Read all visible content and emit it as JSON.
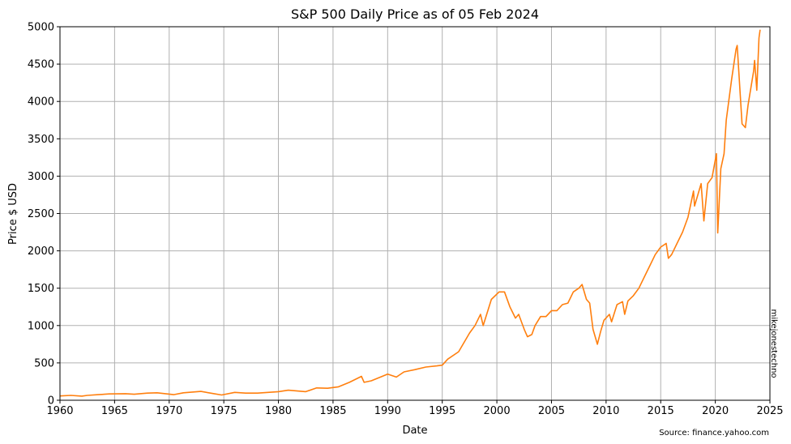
{
  "chart_data": {
    "type": "line",
    "title": "S&P 500 Daily Price as of 05 Feb 2024",
    "xlabel": "Date",
    "ylabel": "Price $ USD",
    "xlim": [
      1960,
      2025
    ],
    "ylim": [
      0,
      5000
    ],
    "x_ticks": [
      "1960",
      "1965",
      "1970",
      "1975",
      "1980",
      "1985",
      "1990",
      "1995",
      "2000",
      "2005",
      "2010",
      "2015",
      "2020",
      "2025"
    ],
    "y_ticks": [
      "0",
      "500",
      "1000",
      "1500",
      "2000",
      "2500",
      "3000",
      "3500",
      "4000",
      "4500",
      "5000"
    ],
    "grid": true,
    "legend": "none",
    "color": "#ff7f0e",
    "series": [
      {
        "x": [
          1960.0,
          1961.0,
          1962.0,
          1962.5,
          1963.5,
          1964.5,
          1966.0,
          1966.8,
          1968.0,
          1968.9,
          1970.4,
          1971.3,
          1972.9,
          1974.0,
          1974.8,
          1976.0,
          1977.0,
          1978.1,
          1980.0,
          1980.9,
          1982.5,
          1983.5,
          1984.5,
          1985.5,
          1986.5,
          1987.6,
          1987.85,
          1988.5,
          1989.5,
          1990.0,
          1990.8,
          1991.5,
          1992.5,
          1993.5,
          1994.5,
          1995.0,
          1995.5,
          1996.5,
          1997.5,
          1998.0,
          1998.5,
          1998.75,
          1999.5,
          2000.2,
          2000.7,
          2001.2,
          2001.7,
          2002.0,
          2002.5,
          2002.8,
          2003.2,
          2003.5,
          2004.0,
          2004.5,
          2005.0,
          2005.5,
          2006.0,
          2006.5,
          2007.0,
          2007.5,
          2007.8,
          2008.2,
          2008.5,
          2008.8,
          2009.2,
          2009.5,
          2009.8,
          2010.3,
          2010.5,
          2011.0,
          2011.5,
          2011.7,
          2012.0,
          2012.5,
          2013.0,
          2013.5,
          2014.0,
          2014.5,
          2015.0,
          2015.5,
          2015.7,
          2016.0,
          2016.5,
          2017.0,
          2017.5,
          2018.0,
          2018.1,
          2018.7,
          2018.95,
          2019.3,
          2019.7,
          2020.1,
          2020.22,
          2020.5,
          2020.8,
          2021.0,
          2021.5,
          2021.9,
          2022.0,
          2022.45,
          2022.75,
          2023.0,
          2023.5,
          2023.6,
          2023.8,
          2024.0,
          2024.1
        ],
        "y": [
          58,
          65,
          55,
          65,
          75,
          85,
          88,
          80,
          95,
          100,
          75,
          100,
          118,
          90,
          70,
          105,
          95,
          95,
          115,
          135,
          115,
          165,
          160,
          180,
          240,
          320,
          240,
          260,
          320,
          350,
          310,
          380,
          410,
          445,
          460,
          470,
          550,
          650,
          900,
          1000,
          1150,
          1000,
          1350,
          1450,
          1450,
          1250,
          1100,
          1150,
          950,
          850,
          880,
          1000,
          1120,
          1120,
          1200,
          1200,
          1280,
          1300,
          1450,
          1500,
          1550,
          1350,
          1300,
          950,
          750,
          920,
          1070,
          1150,
          1050,
          1280,
          1320,
          1150,
          1330,
          1400,
          1500,
          1650,
          1800,
          1950,
          2050,
          2100,
          1900,
          1950,
          2100,
          2250,
          2450,
          2800,
          2600,
          2900,
          2400,
          2900,
          2980,
          3300,
          2240,
          3100,
          3300,
          3750,
          4300,
          4700,
          4750,
          3700,
          3650,
          3950,
          4400,
          4550,
          4150,
          4850,
          4960
        ]
      }
    ]
  },
  "watermark": "mikejonestechno",
  "source_note": "Source: finance.yahoo.com"
}
